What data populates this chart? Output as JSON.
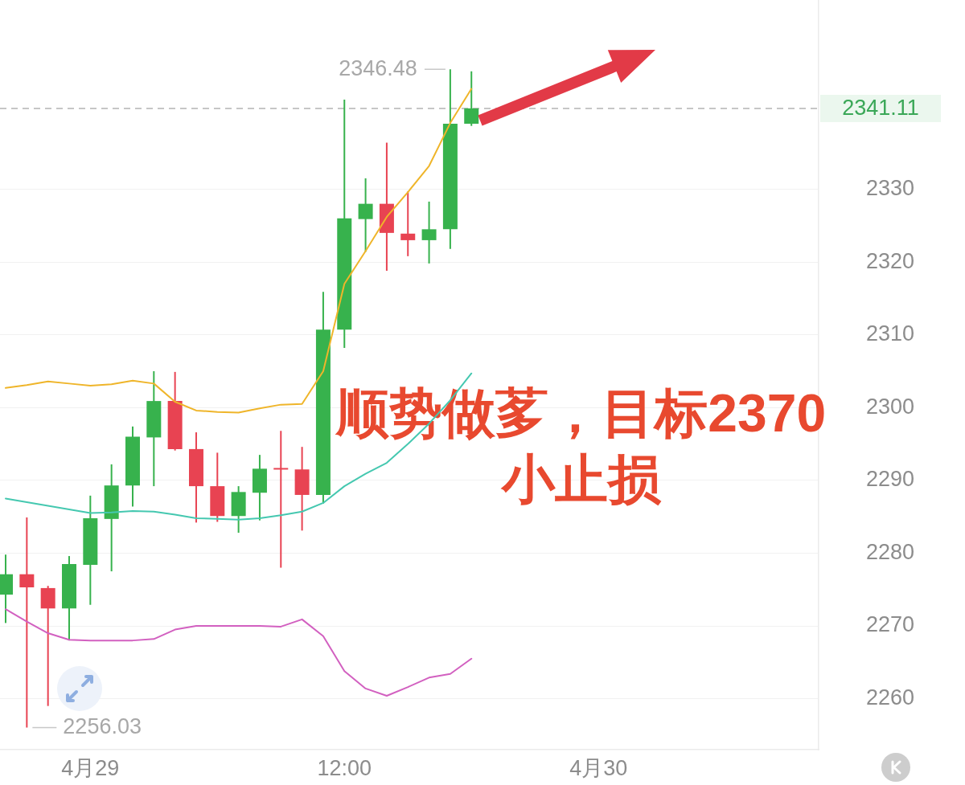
{
  "chart_data": {
    "type": "candlestick",
    "x": [
      "--04-28T20:00",
      "--04-28T21:00",
      "--04-28T22:00",
      "--04-28T23:00",
      "--04-29T00:00",
      "--04-29T01:00",
      "--04-29T02:00",
      "--04-29T03:00",
      "--04-29T04:00",
      "--04-29T05:00",
      "--04-29T06:00",
      "--04-29T07:00",
      "--04-29T08:00",
      "--04-29T09:00",
      "--04-29T10:00",
      "--04-29T11:00",
      "--04-29T12:00",
      "--04-29T13:00",
      "--04-29T14:00",
      "--04-29T15:00",
      "--04-29T16:00",
      "--04-29T17:00",
      "--04-29T18:00"
    ],
    "ohlc": [
      [
        2274.3,
        2279.8,
        2270.4,
        2277.1
      ],
      [
        2277.1,
        2284.9,
        2256.03,
        2275.3
      ],
      [
        2275.2,
        2275.5,
        2259.0,
        2272.4
      ],
      [
        2272.4,
        2279.6,
        2268.0,
        2278.5
      ],
      [
        2278.4,
        2287.9,
        2272.9,
        2284.8
      ],
      [
        2284.7,
        2292.2,
        2277.5,
        2289.3
      ],
      [
        2289.3,
        2297.4,
        2286.4,
        2296.0
      ],
      [
        2295.9,
        2305.0,
        2289.2,
        2300.9
      ],
      [
        2300.9,
        2304.9,
        2294.1,
        2294.3
      ],
      [
        2294.3,
        2296.6,
        2284.2,
        2289.2
      ],
      [
        2289.2,
        2293.8,
        2284.3,
        2285.1
      ],
      [
        2285.1,
        2289.2,
        2282.8,
        2288.4
      ],
      [
        2288.3,
        2293.5,
        2284.5,
        2291.6
      ],
      [
        2291.7,
        2296.8,
        2278.0,
        2291.5
      ],
      [
        2291.5,
        2294.6,
        2283.1,
        2288.0
      ],
      [
        2288.0,
        2315.9,
        2286.8,
        2310.7
      ],
      [
        2310.7,
        2342.3,
        2308.2,
        2326.0
      ],
      [
        2325.9,
        2331.5,
        2321.4,
        2328.0
      ],
      [
        2328.0,
        2336.4,
        2318.8,
        2324.0
      ],
      [
        2323.9,
        2329.7,
        2320.8,
        2323.0
      ],
      [
        2323.0,
        2328.3,
        2319.8,
        2324.5
      ],
      [
        2324.5,
        2346.48,
        2321.8,
        2339.0
      ],
      [
        2339.0,
        2346.2,
        2338.7,
        2341.11
      ]
    ],
    "colors": [
      "#37b24d",
      "#e84352",
      "#e84352",
      "#37b24d",
      "#37b24d",
      "#37b24d",
      "#37b24d",
      "#37b24d",
      "#e84352",
      "#e84352",
      "#e84352",
      "#37b24d",
      "#37b24d",
      "#e84352",
      "#e84352",
      "#37b24d",
      "#37b24d",
      "#37b24d",
      "#e84352",
      "#e84352",
      "#37b24d",
      "#37b24d",
      "#37b24d"
    ],
    "series": [
      {
        "type": "line",
        "color": "#efb52a",
        "values": [
          2302.7,
          2303.1,
          2303.6,
          2303.3,
          2303.0,
          2303.2,
          2303.7,
          2303.3,
          2300.8,
          2299.6,
          2299.4,
          2299.3,
          2299.9,
          2300.4,
          2300.5,
          2305.0,
          2317.0,
          2321.5,
          2326.2,
          2329.6,
          2333.2,
          2339.1,
          2343.8
        ]
      },
      {
        "type": "line",
        "color": "#45c8b0",
        "values": [
          2287.5,
          2287.0,
          2286.5,
          2286.0,
          2285.5,
          2285.6,
          2285.8,
          2285.7,
          2285.3,
          2284.8,
          2284.7,
          2284.6,
          2284.8,
          2285.2,
          2285.7,
          2286.9,
          2289.2,
          2290.9,
          2292.4,
          2295.0,
          2297.8,
          2301.0,
          2304.7
        ]
      },
      {
        "type": "line",
        "color": "#d260c0",
        "values": [
          2272.3,
          2270.6,
          2269.0,
          2268.1,
          2268.0,
          2268.0,
          2268.0,
          2268.2,
          2269.5,
          2270.0,
          2270.0,
          2270.0,
          2270.0,
          2269.9,
          2270.9,
          2268.6,
          2263.8,
          2261.4,
          2260.4,
          2261.6,
          2262.9,
          2263.4,
          2265.5
        ]
      }
    ],
    "xlim": [
      "--04-28T19:44",
      "--04-30T10:24"
    ],
    "xticks": [
      {
        "value": "--04-29T00:00",
        "label": "4月29"
      },
      {
        "value": "--04-29T12:00",
        "label": "12:00"
      },
      {
        "value": "--04-30T00:00",
        "label": "4月30"
      }
    ],
    "ylim": [
      2253,
      2356
    ],
    "yticks": [
      2260,
      2270,
      2280,
      2290,
      2300,
      2310,
      2320,
      2330
    ],
    "grid": "y",
    "marker": "none",
    "ref_lines": [
      {
        "axis": "y",
        "value": 2341.11,
        "label": "2341.11",
        "color": "#b4b4b4",
        "line_style": "dashed"
      }
    ],
    "annotations": [
      {
        "text": "2346.48",
        "x": "--04-29T17:00",
        "y": 2346.48
      },
      {
        "text": "2256.03",
        "x": "--04-28T21:00",
        "y": 2256.03
      },
      "顺势做茤，目标2370",
      "小止损"
    ]
  }
}
